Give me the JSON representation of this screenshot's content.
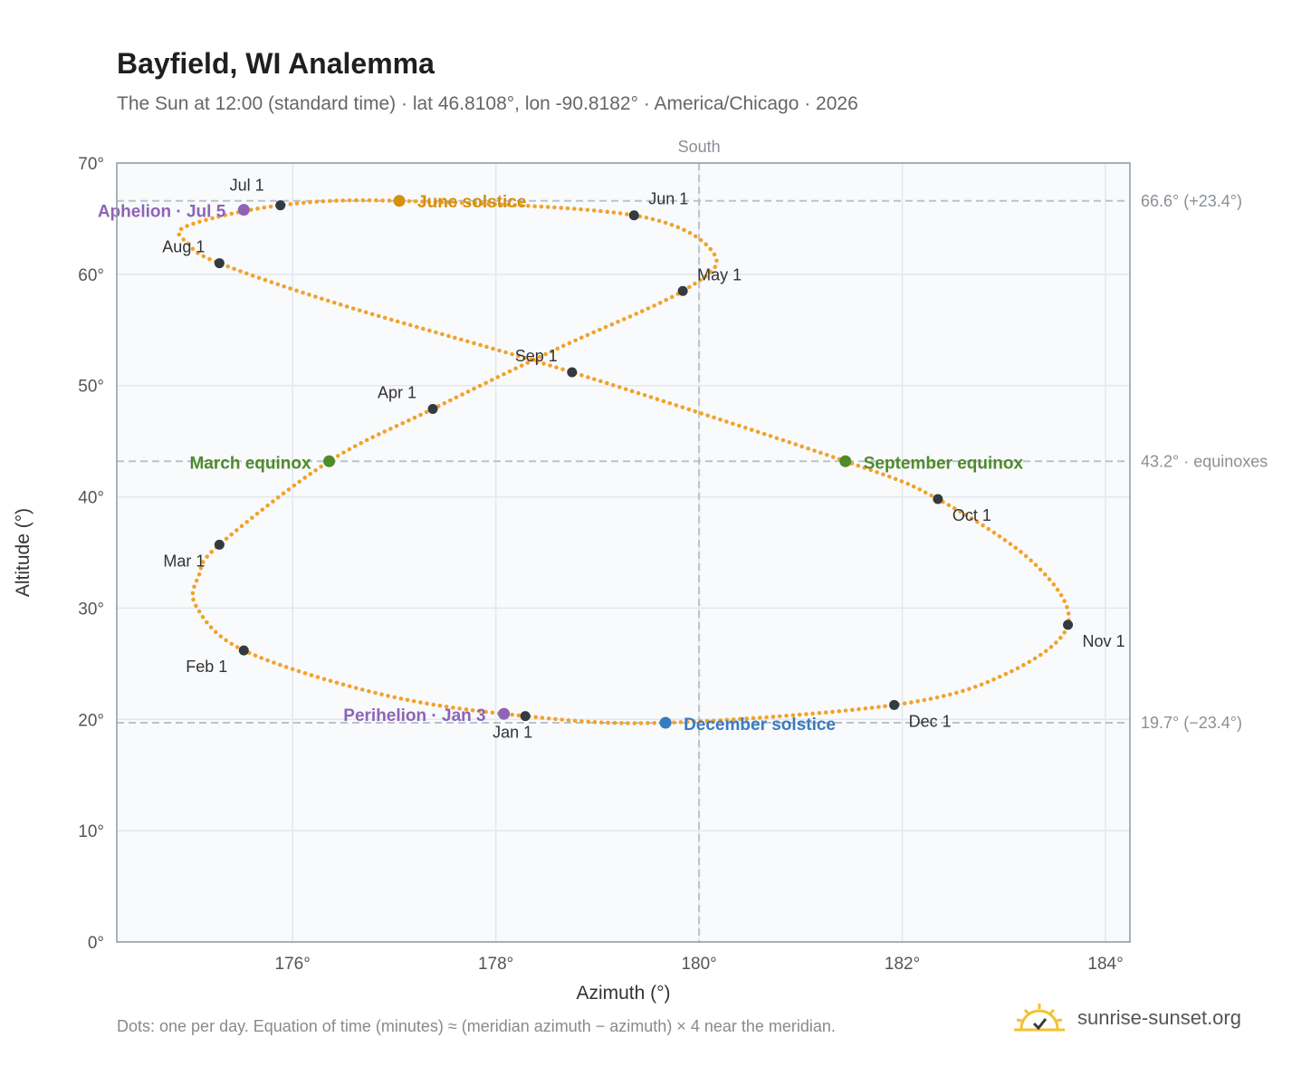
{
  "header": {
    "title": "Bayfield, WI Analemma",
    "subtitle": "The Sun at 12:00 (standard time) · lat 46.8108°, lon -90.8182° · America/Chicago · 2026"
  },
  "footer": {
    "note": "Dots: one per day. Equation of time (minutes) ≈ (meridian azimuth − azimuth) × 4 near the meridian.",
    "brand": "sunrise-sunset.org"
  },
  "colors": {
    "path": "#f2a22b",
    "month_marker": "#333a40",
    "june_solstice": "#d4900f",
    "december_solstice": "#3a7bbf",
    "equinox": "#4f8a2b",
    "apsis": "#8f63b5",
    "reference_line": "#b9c2ca",
    "plot_background": "#f8fafc",
    "grid": "#e3e8ed",
    "frame": "#8e99a4"
  },
  "chart_data": {
    "type": "scatter",
    "title": "Bayfield, WI Analemma",
    "subtitle": "The Sun at 12:00 (standard time) · lat 46.8108°, lon -90.8182° · America/Chicago · 2026",
    "xlabel": "Azimuth (°)",
    "ylabel": "Altitude (°)",
    "xlim": [
      174.27,
      184.24
    ],
    "ylim": [
      0,
      70
    ],
    "x_ticks": [
      176,
      178,
      180,
      182,
      184
    ],
    "x_tick_labels": [
      "176°",
      "178°",
      "180°",
      "182°",
      "184°"
    ],
    "y_ticks": [
      0,
      10,
      20,
      30,
      40,
      50,
      60,
      70
    ],
    "y_tick_labels": [
      "0°",
      "10°",
      "20°",
      "30°",
      "40°",
      "50°",
      "60°",
      "70°"
    ],
    "grid": true,
    "meridian": {
      "azimuth": 180,
      "label": "South"
    },
    "reference_lines": [
      {
        "altitude": 66.6,
        "label": "66.6° (+23.4°)"
      },
      {
        "altitude": 43.2,
        "label": "43.2° · equinoxes"
      },
      {
        "altitude": 19.7,
        "label": "19.7° (−23.4°)"
      }
    ],
    "path_keypoints": [
      {
        "date": "Jan 1",
        "azimuth": 178.29,
        "altitude": 20.3
      },
      {
        "date": "Jan 15",
        "azimuth": 176.9,
        "altitude": 22.2
      },
      {
        "date": "Feb 1",
        "azimuth": 175.52,
        "altitude": 26.2
      },
      {
        "date": "Feb 12",
        "azimuth": 175.05,
        "altitude": 30.2
      },
      {
        "date": "Feb 20",
        "azimuth": 175.08,
        "altitude": 33.0
      },
      {
        "date": "Mar 1",
        "azimuth": 175.28,
        "altitude": 35.7
      },
      {
        "date": "Mar 20",
        "azimuth": 176.36,
        "altitude": 43.2
      },
      {
        "date": "Apr 1",
        "azimuth": 177.38,
        "altitude": 47.9
      },
      {
        "date": "Apr 15",
        "azimuth": 178.6,
        "altitude": 53.3
      },
      {
        "date": "May 1",
        "azimuth": 179.84,
        "altitude": 58.5
      },
      {
        "date": "May 14",
        "azimuth": 180.15,
        "altitude": 61.8
      },
      {
        "date": "Jun 1",
        "azimuth": 179.36,
        "altitude": 65.3
      },
      {
        "date": "Jun 21",
        "azimuth": 177.05,
        "altitude": 66.6
      },
      {
        "date": "Jul 1",
        "azimuth": 175.88,
        "altitude": 66.2
      },
      {
        "date": "Jul 15",
        "azimuth": 174.95,
        "altitude": 64.3
      },
      {
        "date": "Jul 26",
        "azimuth": 174.98,
        "altitude": 62.7
      },
      {
        "date": "Aug 1",
        "azimuth": 175.28,
        "altitude": 61.0
      },
      {
        "date": "Aug 15",
        "azimuth": 176.5,
        "altitude": 57.2
      },
      {
        "date": "Sep 1",
        "azimuth": 178.75,
        "altitude": 51.2
      },
      {
        "date": "Sep 23",
        "azimuth": 181.44,
        "altitude": 43.2
      },
      {
        "date": "Oct 1",
        "azimuth": 182.35,
        "altitude": 39.8
      },
      {
        "date": "Oct 15",
        "azimuth": 183.3,
        "altitude": 34.0
      },
      {
        "date": "Nov 1",
        "azimuth": 183.63,
        "altitude": 28.5
      },
      {
        "date": "Nov 15",
        "azimuth": 183.0,
        "altitude": 24.0
      },
      {
        "date": "Dec 1",
        "azimuth": 181.92,
        "altitude": 21.3
      },
      {
        "date": "Dec 21",
        "azimuth": 179.67,
        "altitude": 19.7
      },
      {
        "date": "Jan 1",
        "azimuth": 178.29,
        "altitude": 20.3
      }
    ],
    "month_markers": [
      {
        "label": "Jan 1",
        "azimuth": 178.29,
        "altitude": 20.3
      },
      {
        "label": "Feb 1",
        "azimuth": 175.52,
        "altitude": 26.2
      },
      {
        "label": "Mar 1",
        "azimuth": 175.28,
        "altitude": 35.7
      },
      {
        "label": "Apr 1",
        "azimuth": 177.38,
        "altitude": 47.9
      },
      {
        "label": "May 1",
        "azimuth": 179.84,
        "altitude": 58.5
      },
      {
        "label": "Jun 1",
        "azimuth": 179.36,
        "altitude": 65.3
      },
      {
        "label": "Jul 1",
        "azimuth": 175.88,
        "altitude": 66.2
      },
      {
        "label": "Aug 1",
        "azimuth": 175.28,
        "altitude": 61.0
      },
      {
        "label": "Sep 1",
        "azimuth": 178.75,
        "altitude": 51.2
      },
      {
        "label": "Oct 1",
        "azimuth": 182.35,
        "altitude": 39.8
      },
      {
        "label": "Nov 1",
        "azimuth": 183.63,
        "altitude": 28.5
      },
      {
        "label": "Dec 1",
        "azimuth": 181.92,
        "altitude": 21.3
      }
    ],
    "events": [
      {
        "label": "June solstice",
        "azimuth": 177.05,
        "altitude": 66.6,
        "color": "#d4900f"
      },
      {
        "label": "December solstice",
        "azimuth": 179.67,
        "altitude": 19.7,
        "color": "#3a7bbf"
      },
      {
        "label": "March equinox",
        "azimuth": 176.36,
        "altitude": 43.2,
        "color": "#4f8a2b"
      },
      {
        "label": "September equinox",
        "azimuth": 181.44,
        "altitude": 43.2,
        "color": "#4f8a2b"
      },
      {
        "label": "Aphelion · Jul 5",
        "azimuth": 175.52,
        "altitude": 65.8,
        "color": "#8f63b5"
      },
      {
        "label": "Perihelion · Jan 3",
        "azimuth": 178.08,
        "altitude": 20.5,
        "color": "#8f63b5"
      }
    ]
  }
}
